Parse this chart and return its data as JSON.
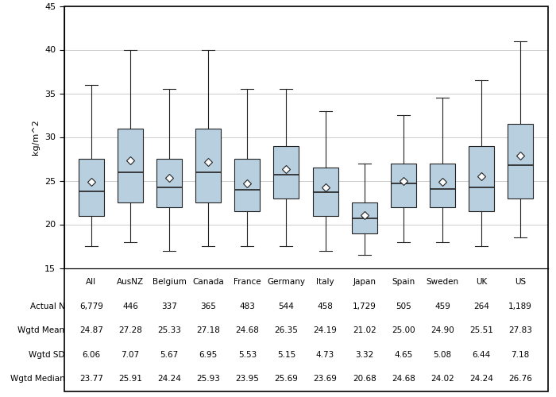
{
  "ylabel": "kg/m^2",
  "ylim": [
    15,
    45
  ],
  "yticks": [
    15,
    20,
    25,
    30,
    35,
    40,
    45
  ],
  "countries": [
    "All",
    "AusNZ",
    "Belgium",
    "Canada",
    "France",
    "Germany",
    "Italy",
    "Japan",
    "Spain",
    "Sweden",
    "UK",
    "US"
  ],
  "box_data": {
    "All": {
      "whislo": 17.5,
      "q1": 21.0,
      "med": 23.77,
      "q3": 27.5,
      "whishi": 36.0,
      "mean": 24.87
    },
    "AusNZ": {
      "whislo": 18.0,
      "q1": 22.5,
      "med": 25.91,
      "q3": 31.0,
      "whishi": 40.0,
      "mean": 27.28
    },
    "Belgium": {
      "whislo": 17.0,
      "q1": 22.0,
      "med": 24.24,
      "q3": 27.5,
      "whishi": 35.5,
      "mean": 25.33
    },
    "Canada": {
      "whislo": 17.5,
      "q1": 22.5,
      "med": 25.93,
      "q3": 31.0,
      "whishi": 40.0,
      "mean": 27.18
    },
    "France": {
      "whislo": 17.5,
      "q1": 21.5,
      "med": 23.95,
      "q3": 27.5,
      "whishi": 35.5,
      "mean": 24.68
    },
    "Germany": {
      "whislo": 17.5,
      "q1": 23.0,
      "med": 25.69,
      "q3": 29.0,
      "whishi": 35.5,
      "mean": 26.35
    },
    "Italy": {
      "whislo": 17.0,
      "q1": 21.0,
      "med": 23.69,
      "q3": 26.5,
      "whishi": 33.0,
      "mean": 24.19
    },
    "Japan": {
      "whislo": 16.5,
      "q1": 19.0,
      "med": 20.68,
      "q3": 22.5,
      "whishi": 27.0,
      "mean": 21.02
    },
    "Spain": {
      "whislo": 18.0,
      "q1": 22.0,
      "med": 24.68,
      "q3": 27.0,
      "whishi": 32.5,
      "mean": 25.0
    },
    "Sweden": {
      "whislo": 18.0,
      "q1": 22.0,
      "med": 24.02,
      "q3": 27.0,
      "whishi": 34.5,
      "mean": 24.9
    },
    "UK": {
      "whislo": 17.5,
      "q1": 21.5,
      "med": 24.24,
      "q3": 29.0,
      "whishi": 36.5,
      "mean": 25.51
    },
    "US": {
      "whislo": 18.5,
      "q1": 23.0,
      "med": 26.76,
      "q3": 31.5,
      "whishi": 41.0,
      "mean": 27.83
    }
  },
  "table_rows": {
    "Actual N": [
      "6,779",
      "446",
      "337",
      "365",
      "483",
      "544",
      "458",
      "1,729",
      "505",
      "459",
      "264",
      "1,189"
    ],
    "Wgtd Mean": [
      "24.87",
      "27.28",
      "25.33",
      "27.18",
      "24.68",
      "26.35",
      "24.19",
      "21.02",
      "25.00",
      "24.90",
      "25.51",
      "27.83"
    ],
    "Wgtd SD": [
      "6.06",
      "7.07",
      "5.67",
      "6.95",
      "5.53",
      "5.15",
      "4.73",
      "3.32",
      "4.65",
      "5.08",
      "6.44",
      "7.18"
    ],
    "Wgtd Median": [
      "23.77",
      "25.91",
      "24.24",
      "25.93",
      "23.95",
      "25.69",
      "23.69",
      "20.68",
      "24.68",
      "24.02",
      "24.24",
      "26.76"
    ]
  },
  "box_color": "#b8cfe0",
  "box_edge_color": "#222222",
  "median_color": "#222222",
  "whisker_color": "#222222",
  "mean_marker_color": "#222222",
  "background_color": "#ffffff",
  "grid_color": "#cccccc"
}
